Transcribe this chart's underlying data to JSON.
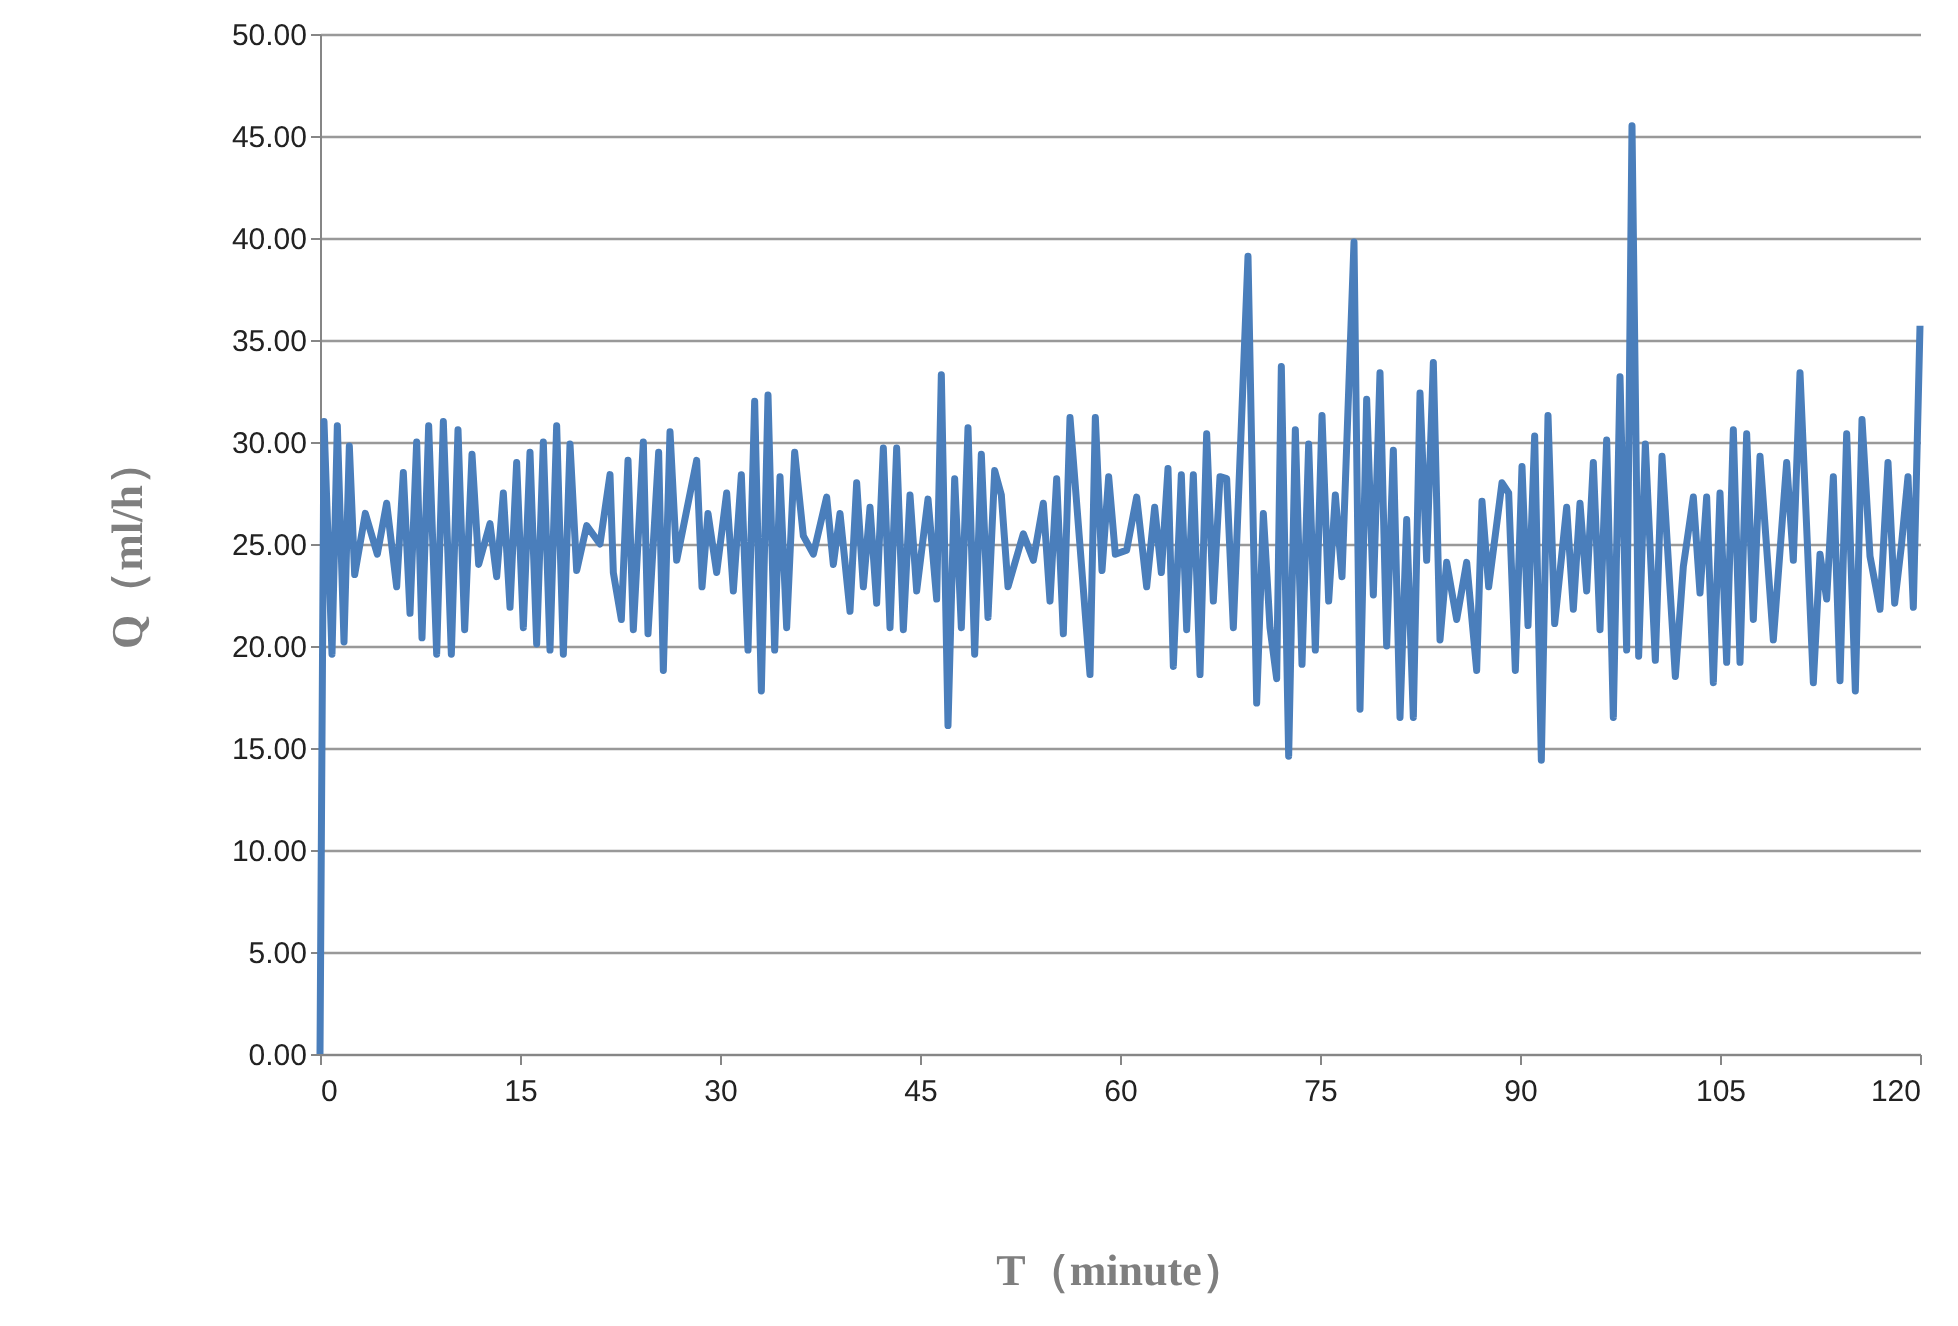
{
  "chart_data": {
    "type": "line",
    "xlabel": "T（minute）",
    "ylabel": "Q（ml/h）",
    "xlim": [
      0,
      120
    ],
    "xticks": [
      0,
      15,
      30,
      45,
      60,
      75,
      90,
      105,
      120
    ],
    "ylim": [
      0,
      50
    ],
    "yticks": [
      {
        "value": 0,
        "label": "0.00"
      },
      {
        "value": 5,
        "label": "5.00"
      },
      {
        "value": 10,
        "label": "10.00"
      },
      {
        "value": 15,
        "label": "15.00"
      },
      {
        "value": 20,
        "label": "20.00"
      },
      {
        "value": 25,
        "label": "25.00"
      },
      {
        "value": 30,
        "label": "30.00"
      },
      {
        "value": 35,
        "label": "35.00"
      },
      {
        "value": 40,
        "label": "40.00"
      },
      {
        "value": 45,
        "label": "45.00"
      },
      {
        "value": 50,
        "label": "50.00"
      }
    ],
    "grid": "y",
    "marker": "none",
    "line_style": "solid",
    "x": [
      0,
      0.3,
      0.9,
      1.3,
      1.8,
      2.2,
      2.6,
      3.4,
      4.3,
      5,
      5.75,
      6.25,
      6.75,
      7.25,
      7.65,
      8.15,
      8.75,
      9.25,
      9.85,
      10.35,
      10.85,
      11.4,
      11.9,
      12.75,
      13.25,
      13.75,
      14.25,
      14.75,
      15.25,
      15.75,
      16.25,
      16.75,
      17.25,
      17.75,
      18.25,
      18.75,
      19.25,
      20,
      21,
      21.75,
      22,
      22.6,
      23.1,
      23.5,
      24.25,
      24.6,
      25.4,
      25.75,
      26.25,
      26.75,
      28.25,
      28.65,
      29.1,
      29.75,
      30.5,
      31,
      31.6,
      32.1,
      32.6,
      33.1,
      33.6,
      34.1,
      34.5,
      35,
      35.6,
      36.25,
      37,
      38,
      38.5,
      39,
      39.75,
      40.25,
      40.75,
      41.25,
      41.75,
      42.25,
      42.75,
      43.25,
      43.75,
      44.25,
      44.75,
      45.6,
      46.25,
      46.6,
      47.1,
      47.6,
      48.1,
      48.6,
      49.1,
      49.6,
      50.1,
      50.6,
      51.1,
      51.6,
      52.75,
      53.5,
      54.25,
      54.75,
      55.25,
      55.75,
      56.25,
      57.75,
      58.15,
      58.65,
      59.15,
      59.65,
      60.5,
      61.25,
      62,
      62.6,
      63.1,
      63.6,
      64,
      64.6,
      65,
      65.5,
      66,
      66.5,
      67,
      67.5,
      68,
      68.5,
      69.6,
      70.25,
      70.75,
      71.25,
      71.75,
      72.1,
      72.65,
      73.15,
      73.65,
      74.15,
      74.65,
      75.15,
      75.65,
      76.15,
      76.65,
      77.55,
      78,
      78.5,
      79,
      79.5,
      80,
      80.5,
      81,
      81.5,
      82,
      82.5,
      83,
      83.5,
      84,
      84.5,
      85.25,
      86,
      86.75,
      87.15,
      87.65,
      88.65,
      89.15,
      89.65,
      90.15,
      90.6,
      91.1,
      91.6,
      92.1,
      92.6,
      93.5,
      94,
      94.5,
      95,
      95.5,
      96,
      96.5,
      97,
      97.5,
      98,
      98.4,
      98.9,
      99.4,
      100.15,
      100.65,
      101.65,
      102.25,
      103,
      103.5,
      104,
      104.5,
      105,
      105.5,
      106,
      106.5,
      107,
      107.5,
      108,
      109,
      110,
      110.5,
      111,
      112,
      112.5,
      113,
      113.5,
      114,
      114.5,
      115.15,
      115.65,
      116.25,
      117,
      117.6,
      118.1,
      118.6,
      119.1,
      119.5,
      120
    ],
    "series": [
      {
        "color": "#4a7ebb",
        "values": [
          0,
          31,
          19.6,
          30.8,
          20.2,
          29.8,
          23.5,
          26.5,
          24.5,
          27,
          22.9,
          28.5,
          21.6,
          30,
          20.4,
          30.8,
          19.6,
          31,
          19.6,
          30.6,
          20.8,
          29.4,
          24,
          26,
          23.4,
          27.5,
          21.9,
          29,
          20.9,
          29.5,
          20.1,
          30,
          19.8,
          30.8,
          19.6,
          29.9,
          23.7,
          25.9,
          25,
          28.4,
          23.6,
          21.3,
          29.1,
          20.8,
          30,
          20.6,
          29.5,
          18.8,
          30.5,
          24.2,
          29.1,
          22.9,
          26.5,
          23.6,
          27.5,
          22.7,
          28.4,
          19.8,
          32,
          17.8,
          32.3,
          19.8,
          28.3,
          20.9,
          29.5,
          25.4,
          24.5,
          27.3,
          24,
          26.5,
          21.7,
          28,
          22.9,
          26.8,
          22.1,
          29.7,
          20.9,
          29.7,
          20.8,
          27.4,
          22.7,
          27.2,
          22.3,
          33.3,
          16.1,
          28.2,
          20.9,
          30.7,
          19.6,
          29.4,
          21.4,
          28.6,
          27.4,
          22.9,
          25.5,
          24.2,
          27,
          22.2,
          28.2,
          20.6,
          31.2,
          18.6,
          31.2,
          23.7,
          28.3,
          24.5,
          24.7,
          27.3,
          22.9,
          26.8,
          23.6,
          28.7,
          19,
          28.4,
          20.8,
          28.4,
          18.6,
          30.4,
          22.2,
          28.3,
          28.2,
          20.9,
          39.1,
          17.2,
          26.5,
          20.9,
          18.4,
          33.7,
          14.6,
          30.6,
          19.1,
          29.9,
          19.8,
          31.3,
          22.2,
          27.4,
          23.4,
          39.8,
          16.9,
          32.1,
          22.5,
          33.4,
          20,
          29.6,
          16.5,
          26.2,
          16.5,
          32.4,
          24.2,
          33.9,
          20.3,
          24.1,
          21.3,
          24.1,
          18.8,
          27.1,
          22.9,
          28,
          27.5,
          18.8,
          28.8,
          21,
          30.3,
          14.4,
          31.3,
          21.1,
          26.8,
          21.8,
          27,
          22.7,
          29,
          20.8,
          30.1,
          16.5,
          33.2,
          19.8,
          45.5,
          19.5,
          29.9,
          19.3,
          29.3,
          18.5,
          23.9,
          27.3,
          22.6,
          27.3,
          18.2,
          27.5,
          19.2,
          30.6,
          19.2,
          30.4,
          21.3,
          29.3,
          20.3,
          29,
          24.2,
          33.4,
          18.2,
          24.5,
          22.3,
          28.3,
          18.3,
          30.4,
          17.8,
          31.1,
          24.4,
          21.8,
          29,
          22.1,
          24.9,
          28.3,
          21.9,
          35.7
        ]
      }
    ]
  }
}
